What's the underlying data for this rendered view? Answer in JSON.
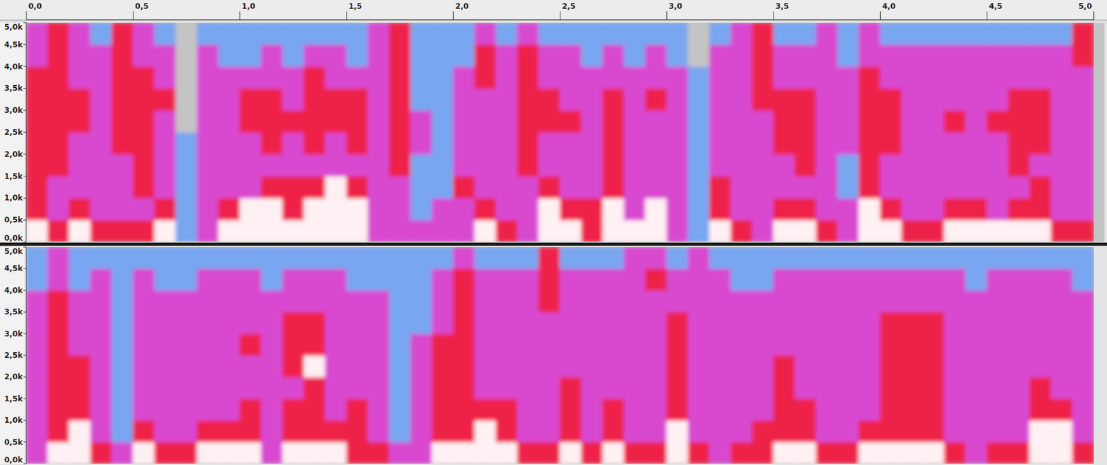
{
  "chart_data": [
    {
      "type": "heatmap",
      "xlim": [
        0,
        5
      ],
      "xticks": [
        {
          "value": 0,
          "label": "0,0"
        },
        {
          "value": 0.5,
          "label": "0,5"
        },
        {
          "value": 1,
          "label": "1,0"
        },
        {
          "value": 1.5,
          "label": "1,5"
        },
        {
          "value": 2,
          "label": "2,0"
        },
        {
          "value": 2.5,
          "label": "2,5"
        },
        {
          "value": 3,
          "label": "3,0"
        },
        {
          "value": 3.5,
          "label": "3,5"
        },
        {
          "value": 4,
          "label": "4,0"
        },
        {
          "value": 4.5,
          "label": "4,5"
        },
        {
          "value": 5,
          "label": "5,0"
        }
      ],
      "ylim": [
        0,
        5000
      ],
      "yticks": [
        {
          "value": 0,
          "label": "0,0k"
        },
        {
          "value": 500,
          "label": "0,5k"
        },
        {
          "value": 1000,
          "label": "1,0k"
        },
        {
          "value": 1500,
          "label": "1,5k"
        },
        {
          "value": 2000,
          "label": "2,0k"
        },
        {
          "value": 2500,
          "label": "2,5k"
        },
        {
          "value": 3000,
          "label": "3,0k"
        },
        {
          "value": 3500,
          "label": "3,5k"
        },
        {
          "value": 4000,
          "label": "4,0k"
        },
        {
          "value": 4500,
          "label": "4,5k"
        },
        {
          "value": 5000,
          "label": "5,0k"
        }
      ],
      "cells": [
        [
          4,
          3,
          4,
          3,
          3,
          3,
          4,
          1,
          2,
          4,
          4,
          4,
          4,
          4,
          4,
          4,
          2,
          2,
          2,
          2,
          2,
          4,
          3,
          2,
          4,
          4,
          3,
          4,
          4,
          4,
          2,
          1,
          4,
          3,
          2,
          4,
          4,
          3,
          2,
          4,
          4,
          3,
          3,
          4,
          4,
          4,
          4,
          4,
          3,
          3
        ],
        [
          3,
          2,
          3,
          2,
          2,
          2,
          3,
          1,
          2,
          3,
          4,
          4,
          3,
          4,
          4,
          4,
          2,
          2,
          1,
          2,
          2,
          3,
          2,
          2,
          4,
          3,
          3,
          4,
          2,
          4,
          2,
          1,
          3,
          2,
          2,
          3,
          3,
          2,
          2,
          4,
          3,
          2,
          2,
          3,
          3,
          2,
          3,
          3,
          2,
          2
        ],
        [
          3,
          2,
          2,
          2,
          2,
          3,
          2,
          1,
          2,
          2,
          2,
          3,
          3,
          3,
          4,
          3,
          2,
          2,
          1,
          1,
          3,
          2,
          2,
          2,
          3,
          2,
          2,
          3,
          2,
          2,
          2,
          1,
          3,
          2,
          2,
          2,
          2,
          2,
          1,
          3,
          2,
          2,
          2,
          2,
          2,
          2,
          2,
          3,
          2,
          2
        ],
        [
          3,
          3,
          2,
          2,
          2,
          3,
          2,
          1,
          2,
          2,
          2,
          2,
          2,
          2,
          2,
          2,
          2,
          3,
          1,
          1,
          2,
          2,
          2,
          3,
          2,
          2,
          2,
          3,
          2,
          2,
          2,
          1,
          2,
          2,
          2,
          2,
          3,
          2,
          1,
          3,
          2,
          2,
          2,
          2,
          2,
          2,
          3,
          2,
          2,
          2
        ],
        [
          3,
          3,
          2,
          2,
          3,
          3,
          2,
          1,
          2,
          2,
          2,
          3,
          2,
          3,
          2,
          3,
          2,
          3,
          2,
          1,
          2,
          2,
          2,
          3,
          2,
          2,
          2,
          3,
          2,
          2,
          2,
          1,
          2,
          2,
          2,
          3,
          3,
          2,
          2,
          3,
          3,
          2,
          2,
          2,
          2,
          2,
          3,
          3,
          2,
          2
        ],
        [
          3,
          3,
          3,
          2,
          3,
          3,
          2,
          0,
          2,
          2,
          3,
          3,
          3,
          3,
          3,
          3,
          2,
          3,
          2,
          1,
          2,
          2,
          2,
          3,
          3,
          3,
          2,
          3,
          2,
          2,
          2,
          1,
          2,
          2,
          2,
          3,
          3,
          2,
          2,
          3,
          3,
          2,
          2,
          3,
          2,
          3,
          3,
          3,
          2,
          2
        ],
        [
          3,
          3,
          3,
          2,
          3,
          3,
          3,
          0,
          2,
          2,
          3,
          3,
          2,
          3,
          3,
          3,
          2,
          3,
          1,
          1,
          2,
          2,
          2,
          3,
          3,
          2,
          2,
          3,
          2,
          3,
          2,
          1,
          2,
          2,
          3,
          3,
          3,
          2,
          2,
          3,
          3,
          2,
          2,
          2,
          2,
          2,
          3,
          3,
          2,
          2
        ],
        [
          3,
          3,
          2,
          2,
          3,
          3,
          2,
          0,
          2,
          2,
          2,
          2,
          2,
          3,
          2,
          2,
          2,
          3,
          1,
          1,
          2,
          3,
          2,
          3,
          2,
          2,
          2,
          2,
          2,
          2,
          2,
          1,
          2,
          2,
          3,
          2,
          2,
          2,
          2,
          3,
          2,
          2,
          2,
          2,
          2,
          2,
          2,
          2,
          2,
          2
        ],
        [
          2,
          3,
          2,
          2,
          3,
          2,
          2,
          0,
          2,
          1,
          1,
          2,
          1,
          2,
          2,
          1,
          2,
          3,
          1,
          1,
          1,
          3,
          2,
          3,
          2,
          2,
          1,
          2,
          1,
          2,
          1,
          0,
          2,
          2,
          3,
          2,
          2,
          2,
          1,
          2,
          2,
          2,
          2,
          2,
          2,
          2,
          2,
          2,
          2,
          3
        ],
        [
          2,
          3,
          2,
          1,
          3,
          2,
          1,
          0,
          1,
          1,
          1,
          1,
          1,
          1,
          1,
          1,
          2,
          3,
          1,
          1,
          1,
          2,
          1,
          2,
          1,
          1,
          1,
          1,
          1,
          1,
          1,
          0,
          1,
          2,
          3,
          1,
          1,
          2,
          1,
          2,
          1,
          1,
          1,
          1,
          1,
          1,
          1,
          1,
          1,
          3
        ]
      ]
    },
    {
      "type": "heatmap",
      "tick_labels": "y",
      "xlim": [
        0,
        5
      ],
      "ylim": [
        0,
        5000
      ],
      "yticks": [
        {
          "value": 0,
          "label": "0,0k"
        },
        {
          "value": 500,
          "label": "0,5k"
        },
        {
          "value": 1000,
          "label": "1,0k"
        },
        {
          "value": 1500,
          "label": "1,5k"
        },
        {
          "value": 2000,
          "label": "2,0k"
        },
        {
          "value": 2500,
          "label": "2,5k"
        },
        {
          "value": 3000,
          "label": "3,0k"
        },
        {
          "value": 3500,
          "label": "3,5k"
        },
        {
          "value": 4000,
          "label": "4,0k"
        },
        {
          "value": 4500,
          "label": "4,5k"
        },
        {
          "value": 5000,
          "label": "5,0k"
        }
      ],
      "cells": [
        [
          2,
          4,
          4,
          3,
          2,
          4,
          3,
          3,
          4,
          4,
          4,
          2,
          4,
          4,
          4,
          3,
          3,
          2,
          2,
          4,
          4,
          4,
          4,
          3,
          3,
          4,
          3,
          4,
          3,
          3,
          4,
          3,
          2,
          3,
          3,
          4,
          4,
          3,
          3,
          4,
          4,
          4,
          4,
          3,
          2,
          3,
          3,
          4,
          4,
          3
        ],
        [
          2,
          3,
          4,
          2,
          1,
          3,
          2,
          2,
          3,
          3,
          3,
          2,
          3,
          3,
          3,
          3,
          2,
          1,
          2,
          3,
          3,
          4,
          3,
          2,
          2,
          3,
          2,
          3,
          2,
          2,
          4,
          2,
          2,
          2,
          3,
          3,
          3,
          2,
          2,
          3,
          3,
          3,
          3,
          2,
          2,
          2,
          2,
          4,
          4,
          2
        ],
        [
          2,
          3,
          3,
          2,
          1,
          2,
          2,
          2,
          2,
          2,
          3,
          2,
          3,
          3,
          2,
          3,
          2,
          1,
          2,
          3,
          3,
          3,
          3,
          2,
          2,
          3,
          2,
          3,
          2,
          2,
          3,
          2,
          2,
          2,
          2,
          3,
          3,
          2,
          2,
          2,
          3,
          3,
          3,
          2,
          2,
          2,
          2,
          3,
          3,
          2
        ],
        [
          2,
          3,
          3,
          2,
          1,
          2,
          2,
          2,
          2,
          2,
          2,
          2,
          2,
          3,
          2,
          2,
          2,
          1,
          2,
          3,
          3,
          2,
          2,
          2,
          2,
          3,
          2,
          2,
          2,
          2,
          3,
          2,
          2,
          2,
          2,
          3,
          2,
          2,
          2,
          2,
          3,
          3,
          3,
          2,
          2,
          2,
          2,
          3,
          2,
          2
        ],
        [
          2,
          3,
          3,
          2,
          1,
          2,
          2,
          2,
          2,
          2,
          2,
          2,
          3,
          4,
          2,
          2,
          2,
          1,
          2,
          3,
          3,
          2,
          2,
          2,
          2,
          2,
          2,
          2,
          2,
          2,
          3,
          2,
          2,
          2,
          2,
          3,
          2,
          2,
          2,
          2,
          3,
          3,
          3,
          2,
          2,
          2,
          2,
          2,
          2,
          2
        ],
        [
          2,
          3,
          2,
          2,
          1,
          2,
          2,
          2,
          2,
          2,
          3,
          2,
          3,
          3,
          2,
          2,
          2,
          1,
          2,
          3,
          3,
          2,
          2,
          2,
          2,
          2,
          2,
          2,
          2,
          2,
          3,
          2,
          2,
          2,
          2,
          2,
          2,
          2,
          2,
          2,
          3,
          3,
          3,
          2,
          2,
          2,
          2,
          2,
          2,
          2
        ],
        [
          2,
          3,
          2,
          2,
          1,
          2,
          2,
          2,
          2,
          2,
          2,
          2,
          3,
          3,
          2,
          2,
          2,
          1,
          1,
          2,
          3,
          2,
          2,
          2,
          2,
          2,
          2,
          2,
          2,
          2,
          3,
          2,
          2,
          2,
          2,
          2,
          2,
          2,
          2,
          2,
          3,
          3,
          3,
          2,
          2,
          2,
          2,
          2,
          2,
          2
        ],
        [
          2,
          3,
          2,
          2,
          1,
          2,
          2,
          2,
          2,
          2,
          2,
          2,
          2,
          2,
          2,
          2,
          2,
          1,
          1,
          2,
          3,
          2,
          2,
          2,
          3,
          2,
          2,
          2,
          2,
          2,
          2,
          2,
          2,
          2,
          2,
          2,
          2,
          2,
          2,
          2,
          2,
          2,
          2,
          2,
          2,
          2,
          2,
          2,
          2,
          2
        ],
        [
          1,
          2,
          1,
          2,
          1,
          2,
          1,
          1,
          2,
          2,
          2,
          1,
          2,
          2,
          2,
          1,
          1,
          1,
          1,
          2,
          3,
          2,
          2,
          2,
          3,
          2,
          2,
          2,
          2,
          3,
          2,
          2,
          2,
          1,
          1,
          2,
          2,
          2,
          2,
          2,
          2,
          2,
          2,
          2,
          1,
          2,
          2,
          2,
          2,
          1
        ],
        [
          1,
          2,
          1,
          1,
          1,
          1,
          1,
          1,
          1,
          1,
          1,
          1,
          1,
          1,
          1,
          1,
          1,
          1,
          1,
          1,
          2,
          1,
          1,
          1,
          3,
          1,
          1,
          1,
          2,
          2,
          1,
          2,
          1,
          1,
          1,
          1,
          1,
          1,
          1,
          1,
          1,
          1,
          1,
          1,
          1,
          1,
          1,
          1,
          1,
          1
        ]
      ]
    }
  ]
}
